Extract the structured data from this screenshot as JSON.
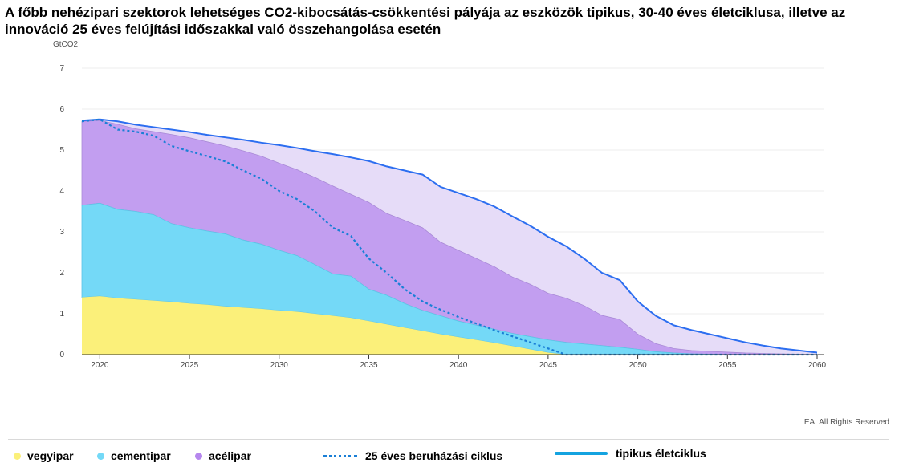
{
  "title": "A főbb nehézipari szektorok lehetséges CO2-kibocsátás-csökkentési pályája az eszközök tipikus, 30-40 éves életciklusa, illetve az innováció 25 éves felújítási időszakkal való összehangolása esetén",
  "unit_label": "GtCO2",
  "credit": "IEA. All Rights Reserved",
  "colors": {
    "vegyipar": "#fbf07a",
    "vegyipar_light": "#fdfbd6",
    "cementipar": "#74d9f7",
    "cementipar_light": "#cfeffb",
    "acelipar": "#c29ef0",
    "acelipar_light": "#e6dcf8",
    "dotted": "#1a7fd6",
    "solid": "#2c6ef0",
    "legend_solid": "#14a3e0"
  },
  "legend": [
    {
      "name": "vegyipar",
      "color": "#fbf07a",
      "kind": "dot"
    },
    {
      "name": "cementipar",
      "color": "#74d9f7",
      "kind": "dot"
    },
    {
      "name": "acélipar",
      "color": "#b687ee",
      "kind": "dot"
    },
    {
      "name": "25 éves beruházási ciklus",
      "color": "#1a7fd6",
      "kind": "dotted"
    },
    {
      "name": "tipikus életciklus",
      "color": "#14a3e0",
      "kind": "solid"
    }
  ],
  "chart_data": {
    "type": "area",
    "xlim": [
      2019,
      2060
    ],
    "ylim": [
      0,
      7
    ],
    "x_ticks": [
      2020,
      2025,
      2030,
      2035,
      2040,
      2045,
      2050,
      2055,
      2060
    ],
    "y_ticks": [
      0,
      1,
      2,
      3,
      4,
      5,
      6,
      7
    ],
    "grid": true,
    "series_25yr": {
      "x": [
        2019,
        2020,
        2021,
        2022,
        2023,
        2024,
        2025,
        2026,
        2027,
        2028,
        2029,
        2030,
        2031,
        2032,
        2033,
        2034,
        2035,
        2036,
        2037,
        2038,
        2039,
        2040,
        2041,
        2042,
        2043,
        2044,
        2045,
        2046,
        2047,
        2048,
        2049,
        2050,
        2051,
        2052,
        2053,
        2054,
        2055,
        2056,
        2057,
        2058,
        2059,
        2060
      ],
      "vegyipar": [
        1.4,
        1.43,
        1.38,
        1.35,
        1.32,
        1.29,
        1.25,
        1.22,
        1.18,
        1.15,
        1.12,
        1.08,
        1.05,
        1.0,
        0.95,
        0.9,
        0.82,
        0.74,
        0.66,
        0.58,
        0.5,
        0.43,
        0.36,
        0.29,
        0.21,
        0.13,
        0.05,
        0,
        0,
        0,
        0,
        0,
        0,
        0,
        0,
        0,
        0,
        0,
        0,
        0,
        0,
        0
      ],
      "cementipar": [
        3.65,
        3.7,
        3.55,
        3.5,
        3.42,
        3.2,
        3.1,
        3.02,
        2.95,
        2.8,
        2.7,
        2.55,
        2.42,
        2.2,
        1.97,
        1.92,
        1.6,
        1.45,
        1.25,
        1.08,
        0.95,
        0.82,
        0.72,
        0.62,
        0.52,
        0.44,
        0.36,
        0.3,
        0.26,
        0.22,
        0.18,
        0.13,
        0.07,
        0.04,
        0.02,
        0.01,
        0,
        0,
        0,
        0,
        0,
        0
      ],
      "acelipar": [
        5.7,
        5.72,
        5.63,
        5.52,
        5.45,
        5.38,
        5.3,
        5.2,
        5.1,
        4.98,
        4.85,
        4.68,
        4.52,
        4.33,
        4.12,
        3.92,
        3.72,
        3.45,
        3.28,
        3.1,
        2.75,
        2.55,
        2.35,
        2.15,
        1.9,
        1.72,
        1.5,
        1.38,
        1.2,
        0.96,
        0.86,
        0.5,
        0.27,
        0.15,
        0.1,
        0.08,
        0.06,
        0.04,
        0.03,
        0.02,
        0.01,
        0
      ],
      "total_dotted": [
        5.7,
        5.75,
        5.5,
        5.45,
        5.35,
        5.1,
        4.97,
        4.85,
        4.72,
        4.5,
        4.3,
        4.0,
        3.8,
        3.5,
        3.1,
        2.9,
        2.35,
        2.0,
        1.6,
        1.3,
        1.1,
        0.92,
        0.76,
        0.6,
        0.45,
        0.3,
        0.15,
        0,
        0,
        0,
        0,
        0,
        0,
        0,
        0,
        0,
        0,
        0,
        0,
        0,
        0,
        0
      ]
    },
    "series_typical": {
      "x": [
        2019,
        2020,
        2021,
        2022,
        2023,
        2024,
        2025,
        2026,
        2027,
        2028,
        2029,
        2030,
        2031,
        2032,
        2033,
        2034,
        2035,
        2036,
        2037,
        2038,
        2039,
        2040,
        2041,
        2042,
        2043,
        2044,
        2045,
        2046,
        2047,
        2048,
        2049,
        2050,
        2051,
        2052,
        2053,
        2054,
        2055,
        2056,
        2057,
        2058,
        2059,
        2060
      ],
      "vegyipar": [
        1.4,
        1.43,
        1.38,
        1.35,
        1.32,
        1.29,
        1.25,
        1.22,
        1.18,
        1.15,
        1.12,
        1.08,
        1.05,
        1.02,
        1.0,
        0.98,
        0.95,
        0.9,
        0.82,
        0.75,
        0.69,
        0.64,
        0.58,
        0.55,
        0.5,
        0.45,
        0.38,
        0.33,
        0.28,
        0.24,
        0.2,
        0.15,
        0.06,
        0.04,
        0.03,
        0.02,
        0.02,
        0.01,
        0.01,
        0.01,
        0,
        0
      ],
      "cementipar": [
        3.65,
        3.7,
        3.66,
        3.62,
        3.58,
        3.53,
        3.49,
        3.45,
        3.41,
        3.36,
        3.32,
        3.27,
        3.2,
        3.12,
        3.05,
        2.98,
        2.9,
        2.78,
        2.7,
        2.62,
        2.45,
        2.35,
        2.2,
        2.1,
        1.88,
        1.72,
        1.5,
        1.38,
        1.2,
        0.96,
        0.86,
        0.5,
        0.27,
        0.15,
        0.1,
        0.08,
        0.06,
        0.04,
        0.03,
        0.02,
        0.01,
        0
      ],
      "total_solid": [
        5.72,
        5.75,
        5.7,
        5.62,
        5.56,
        5.5,
        5.44,
        5.37,
        5.31,
        5.25,
        5.18,
        5.12,
        5.05,
        4.97,
        4.9,
        4.82,
        4.73,
        4.6,
        4.5,
        4.4,
        4.1,
        3.95,
        3.8,
        3.62,
        3.38,
        3.15,
        2.88,
        2.65,
        2.35,
        2.0,
        1.82,
        1.3,
        0.95,
        0.72,
        0.6,
        0.5,
        0.4,
        0.3,
        0.22,
        0.15,
        0.1,
        0.05
      ]
    }
  }
}
